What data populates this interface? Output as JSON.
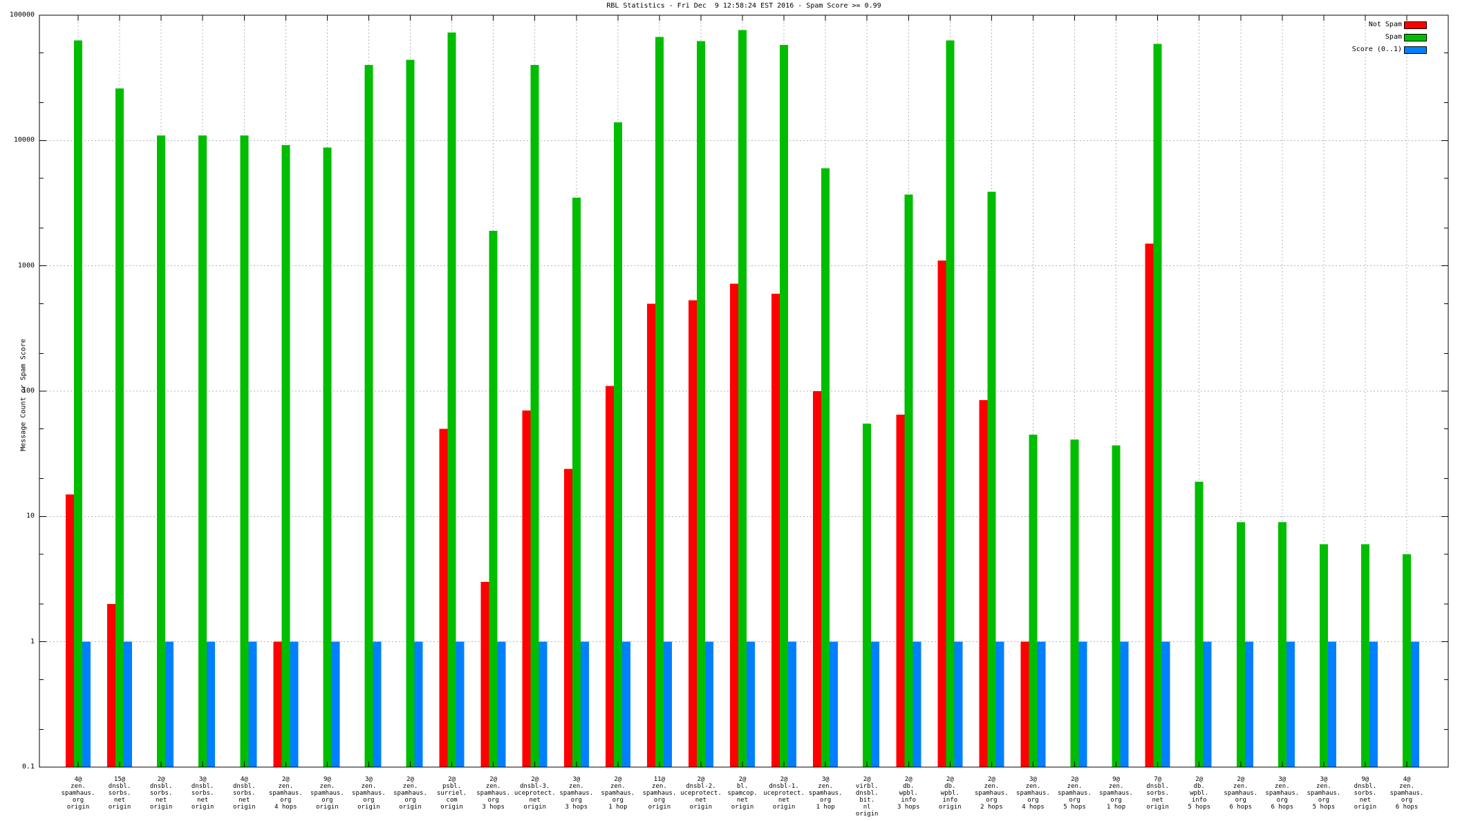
{
  "chart_data": {
    "type": "bar",
    "yscale": "log",
    "ylim": [
      0.1,
      100000
    ],
    "title": "RBL Statistics - Fri Dec  9 12:58:24 EST 2016 - Spam Score >= 0.99",
    "ylabel": "Message Count or Spam Score",
    "y_ticks": [
      "100000",
      "10000",
      "1000",
      "100",
      "10",
      "1",
      "0.1"
    ],
    "grid": true,
    "legend_position": "top-right-inside",
    "categories": [
      [
        "4@",
        "zen.",
        "spamhaus.",
        "org",
        "origin"
      ],
      [
        "15@",
        "dnsbl.",
        "sorbs.",
        "net",
        "origin"
      ],
      [
        "2@",
        "dnsbl.",
        "sorbs.",
        "net",
        "origin"
      ],
      [
        "3@",
        "dnsbl.",
        "sorbs.",
        "net",
        "origin"
      ],
      [
        "4@",
        "dnsbl.",
        "sorbs.",
        "net",
        "origin"
      ],
      [
        "2@",
        "zen.",
        "spamhaus.",
        "org",
        "4 hops"
      ],
      [
        "9@",
        "zen.",
        "spamhaus.",
        "org",
        "origin"
      ],
      [
        "3@",
        "zen.",
        "spamhaus.",
        "org",
        "origin"
      ],
      [
        "2@",
        "zen.",
        "spamhaus.",
        "org",
        "origin"
      ],
      [
        "2@",
        "psbl.",
        "surriel.",
        "com",
        "origin"
      ],
      [
        "2@",
        "zen.",
        "spamhaus.",
        "org",
        "3 hops"
      ],
      [
        "2@",
        "dnsbl-3.",
        "uceprotect.",
        "net",
        "origin"
      ],
      [
        "3@",
        "zen.",
        "spamhaus.",
        "org",
        "3 hops"
      ],
      [
        "2@",
        "zen.",
        "spamhaus.",
        "org",
        "1 hop"
      ],
      [
        "11@",
        "zen.",
        "spamhaus.",
        "org",
        "origin"
      ],
      [
        "2@",
        "dnsbl-2.",
        "uceprotect.",
        "net",
        "origin"
      ],
      [
        "2@",
        "bl.",
        "spamcop.",
        "net",
        "origin"
      ],
      [
        "2@",
        "dnsbl-1.",
        "uceprotect.",
        "net",
        "origin"
      ],
      [
        "3@",
        "zen.",
        "spamhaus.",
        "org",
        "1 hop"
      ],
      [
        "2@",
        "virbl.",
        "dnsbl.",
        "bit.",
        "nl",
        "origin"
      ],
      [
        "2@",
        "db.",
        "wpbl.",
        "info",
        "3 hops"
      ],
      [
        "2@",
        "db.",
        "wpbl.",
        "info",
        "origin"
      ],
      [
        "2@",
        "zen.",
        "spamhaus.",
        "org",
        "2 hops"
      ],
      [
        "3@",
        "zen.",
        "spamhaus.",
        "org",
        "4 hops"
      ],
      [
        "2@",
        "zen.",
        "spamhaus.",
        "org",
        "5 hops"
      ],
      [
        "9@",
        "zen.",
        "spamhaus.",
        "org",
        "1 hop"
      ],
      [
        "7@",
        "dnsbl.",
        "sorbs.",
        "net",
        "origin"
      ],
      [
        "2@",
        "db.",
        "wpbl.",
        "info",
        "5 hops"
      ],
      [
        "2@",
        "zen.",
        "spamhaus.",
        "org",
        "6 hops"
      ],
      [
        "3@",
        "zen.",
        "spamhaus.",
        "org",
        "6 hops"
      ],
      [
        "3@",
        "zen.",
        "spamhaus.",
        "org",
        "5 hops"
      ],
      [
        "9@",
        "dnsbl.",
        "sorbs.",
        "net",
        "origin"
      ],
      [
        "4@",
        "zen.",
        "spamhaus.",
        "org",
        "6 hops"
      ]
    ],
    "series": [
      {
        "name": "Not Spam",
        "color": "#ff0000",
        "values": [
          15,
          2,
          0,
          0,
          0,
          1,
          0,
          0,
          0,
          50,
          3,
          70,
          24,
          110,
          500,
          530,
          720,
          600,
          100,
          0,
          65,
          1100,
          85,
          1,
          0,
          0,
          1500,
          0,
          0,
          0,
          0,
          0,
          0
        ]
      },
      {
        "name": "Spam",
        "color": "#00bd00",
        "values": [
          63000,
          26000,
          11000,
          11000,
          11000,
          9200,
          8800,
          40000,
          44000,
          73000,
          1900,
          40000,
          3500,
          14000,
          67000,
          62000,
          76000,
          58000,
          6000,
          55,
          3700,
          63000,
          3900,
          45,
          41,
          37,
          59000,
          19,
          9,
          9,
          6,
          6,
          5
        ]
      },
      {
        "name": "Score (0..1)",
        "color": "#0080ff",
        "values": [
          1,
          1,
          1,
          1,
          1,
          1,
          1,
          1,
          1,
          1,
          1,
          1,
          1,
          1,
          1,
          1,
          1,
          1,
          1,
          1,
          1,
          1,
          1,
          1,
          1,
          1,
          1,
          1,
          1,
          1,
          1,
          1,
          1
        ]
      }
    ]
  }
}
